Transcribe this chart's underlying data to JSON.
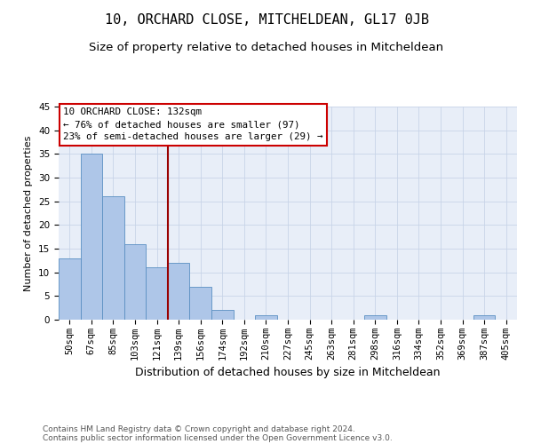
{
  "title": "10, ORCHARD CLOSE, MITCHELDEAN, GL17 0JB",
  "subtitle": "Size of property relative to detached houses in Mitcheldean",
  "xlabel": "Distribution of detached houses by size in Mitcheldean",
  "ylabel": "Number of detached properties",
  "footer_line1": "Contains HM Land Registry data © Crown copyright and database right 2024.",
  "footer_line2": "Contains public sector information licensed under the Open Government Licence v3.0.",
  "categories": [
    "50sqm",
    "67sqm",
    "85sqm",
    "103sqm",
    "121sqm",
    "139sqm",
    "156sqm",
    "174sqm",
    "192sqm",
    "210sqm",
    "227sqm",
    "245sqm",
    "263sqm",
    "281sqm",
    "298sqm",
    "316sqm",
    "334sqm",
    "352sqm",
    "369sqm",
    "387sqm",
    "405sqm"
  ],
  "values": [
    13,
    35,
    26,
    16,
    11,
    12,
    7,
    2,
    0,
    1,
    0,
    0,
    0,
    0,
    1,
    0,
    0,
    0,
    0,
    1,
    0
  ],
  "bar_color": "#aec6e8",
  "bar_edge_color": "#5a8fc2",
  "grid_color": "#c8d4e8",
  "background_color": "#e8eef8",
  "vline_x": 4.5,
  "vline_color": "#990000",
  "annotation_text": "10 ORCHARD CLOSE: 132sqm\n← 76% of detached houses are smaller (97)\n23% of semi-detached houses are larger (29) →",
  "annotation_box_color": "#ffffff",
  "annotation_box_edge": "#cc0000",
  "ylim": [
    0,
    45
  ],
  "yticks": [
    0,
    5,
    10,
    15,
    20,
    25,
    30,
    35,
    40,
    45
  ],
  "title_fontsize": 11,
  "subtitle_fontsize": 9.5,
  "xlabel_fontsize": 9,
  "ylabel_fontsize": 8,
  "tick_fontsize": 7.5,
  "annotation_fontsize": 7.8,
  "footer_fontsize": 6.5
}
